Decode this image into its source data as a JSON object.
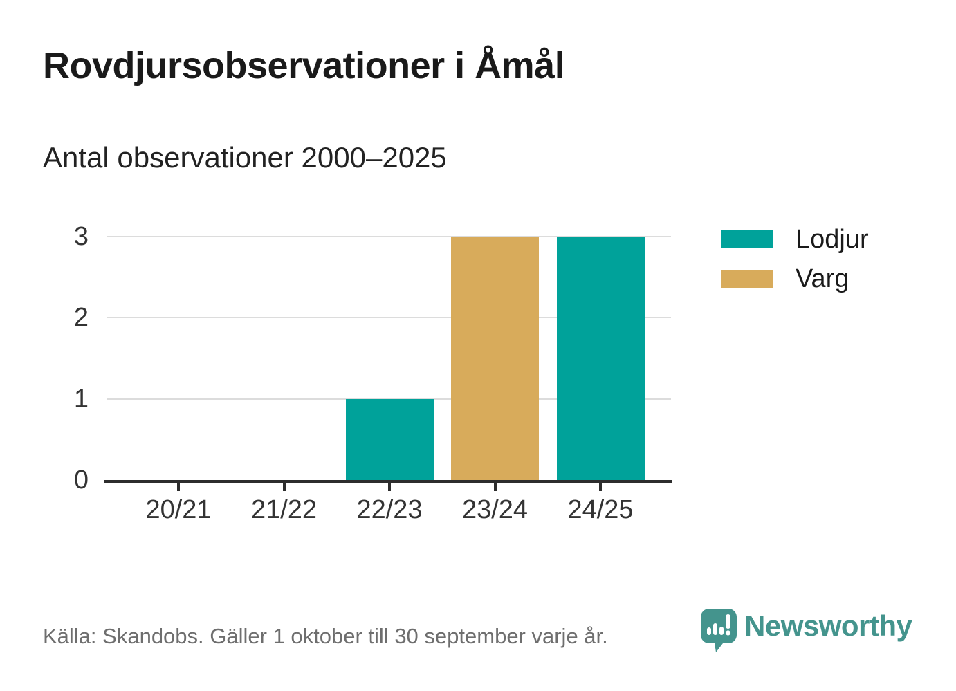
{
  "header": {
    "title": "Rovdjursobservationer i Åmål",
    "subtitle": "Antal observationer 2000–2025"
  },
  "chart_data": {
    "type": "bar",
    "categories": [
      "20/21",
      "21/22",
      "22/23",
      "23/24",
      "24/25"
    ],
    "series": [
      {
        "name": "Lodjur",
        "color": "#00a29a",
        "values": [
          0,
          0,
          1,
          0,
          3
        ]
      },
      {
        "name": "Varg",
        "color": "#d8ab5b",
        "values": [
          0,
          0,
          0,
          3,
          0
        ]
      }
    ],
    "title": "Rovdjursobservationer i Åmål",
    "subtitle": "Antal observationer 2000–2025",
    "xlabel": "",
    "ylabel": "",
    "ylim": [
      0,
      3
    ],
    "yticks": [
      0,
      1,
      2,
      3
    ],
    "grid": true,
    "legend_position": "right"
  },
  "legend": {
    "items": [
      {
        "label": "Lodjur",
        "color": "#00a29a"
      },
      {
        "label": "Varg",
        "color": "#d8ab5b"
      }
    ]
  },
  "footer": {
    "source": "Källa: Skandobs. Gäller 1 oktober till 30 september varje år.",
    "brand": "Newsworthy"
  },
  "colors": {
    "lodjur": "#00a29a",
    "varg": "#d8ab5b",
    "brand": "#44948d",
    "grid": "#dcdcdc",
    "axis": "#2d2d2d",
    "title_text": "#1a1a1a",
    "axis_text": "#333333",
    "muted_text": "#6e6e6e"
  }
}
